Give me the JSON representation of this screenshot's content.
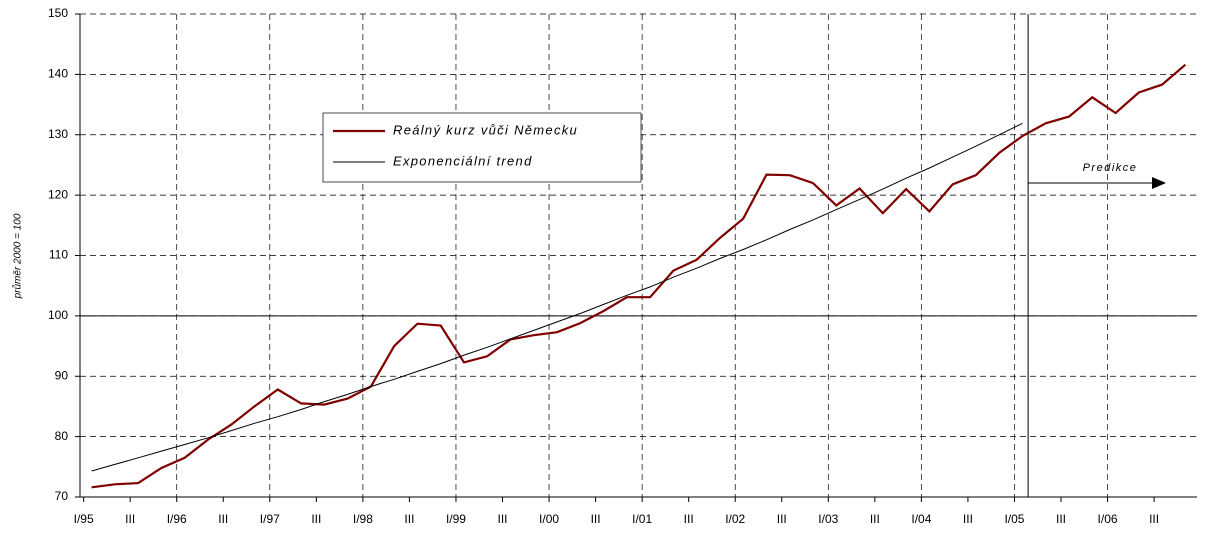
{
  "chart_data": {
    "type": "line",
    "y_label": "průměr 2000 = 100",
    "categories": [
      "I/95",
      null,
      "III",
      null,
      "I/96",
      null,
      "III",
      null,
      "I/97",
      null,
      "III",
      null,
      "I/98",
      null,
      "III",
      null,
      "I/99",
      null,
      "III",
      null,
      "I/00",
      null,
      "III",
      null,
      "I/01",
      null,
      "III",
      null,
      "I/02",
      null,
      "III",
      null,
      "I/03",
      null,
      "III",
      null,
      "I/04",
      null,
      "III",
      null,
      "I/05",
      null,
      "III",
      null,
      "I/06",
      null,
      "III",
      null
    ],
    "series": [
      {
        "name": "Reálný kurz vůči Německu",
        "color": "#800000",
        "values": [
          71.6,
          72.1,
          72.3,
          74.8,
          76.5,
          79.5,
          82.0,
          85.0,
          87.8,
          85.5,
          85.3,
          86.3,
          88.3,
          95.0,
          98.7,
          98.4,
          92.3,
          93.3,
          96.1,
          96.8,
          97.3,
          98.8,
          100.8,
          103.1,
          103.1,
          107.5,
          109.3,
          112.9,
          116.1,
          123.4,
          123.3,
          122.0,
          118.3,
          121.1,
          117.0,
          121.0,
          117.3,
          121.8,
          123.3,
          127.0,
          129.8,
          131.9,
          133.0,
          136.2,
          133.6,
          137.0,
          138.3,
          141.6
        ]
      },
      {
        "name": "Exponenciální trend",
        "color": "#000000",
        "values": [
          74.3,
          75.4,
          76.5,
          77.6,
          78.7,
          79.8,
          81.0,
          82.2,
          83.3,
          84.5,
          85.8,
          87.0,
          88.3,
          89.5,
          90.8,
          92.1,
          93.5,
          94.8,
          96.2,
          97.6,
          99.0,
          100.4,
          101.9,
          103.4,
          104.8,
          106.4,
          107.9,
          109.5,
          111.0,
          112.6,
          114.3,
          115.9,
          117.6,
          119.3,
          121.0,
          122.8,
          124.5,
          126.3,
          128.1,
          130.0,
          131.9,
          null,
          null,
          null,
          null,
          null,
          null,
          null
        ]
      }
    ],
    "annotation": "Predikce",
    "ylim": [
      70,
      150
    ],
    "yticks": [
      70,
      80,
      90,
      100,
      110,
      120,
      130,
      140,
      150
    ],
    "grid": true,
    "reference_line": 100
  }
}
